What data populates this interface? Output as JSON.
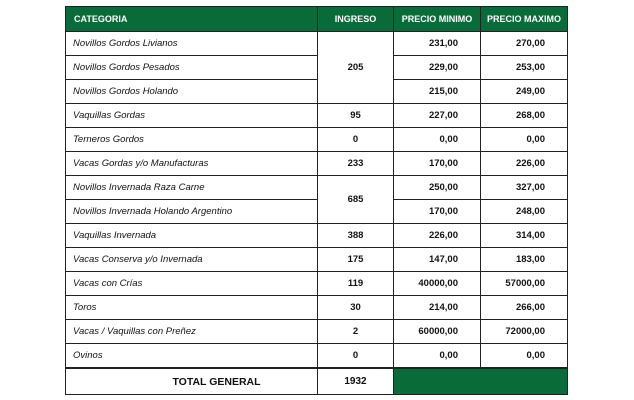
{
  "headers": {
    "categoria": "CATEGORIA",
    "ingreso": "INGRESO",
    "precio_minimo": "PRECIO MINIMO",
    "precio_maximo": "PRECIO MAXIMO"
  },
  "rows": [
    {
      "categoria": "Novillos Gordos Livianos",
      "min": "231,00",
      "max": "270,00"
    },
    {
      "categoria": "Novillos Gordos Pesados",
      "min": "229,00",
      "max": "253,00"
    },
    {
      "categoria": "Novillos Gordos Holando",
      "min": "215,00",
      "max": "249,00"
    },
    {
      "categoria": "Vaquillas Gordas",
      "ingreso": "95",
      "min": "227,00",
      "max": "268,00"
    },
    {
      "categoria": "Terneros Gordos",
      "ingreso": "0",
      "min": "0,00",
      "max": "0,00"
    },
    {
      "categoria": "Vacas Gordas y/o Manufacturas",
      "ingreso": "233",
      "min": "170,00",
      "max": "226,00"
    },
    {
      "categoria": "Novillos Invernada Raza Carne",
      "min": "250,00",
      "max": "327,00"
    },
    {
      "categoria": "Novillos Invernada Holando Argentino",
      "min": "170,00",
      "max": "248,00"
    },
    {
      "categoria": "Vaquillas Invernada",
      "ingreso": "388",
      "min": "226,00",
      "max": "314,00"
    },
    {
      "categoria": "Vacas Conserva y/o Invernada",
      "ingreso": "175",
      "min": "147,00",
      "max": "183,00"
    },
    {
      "categoria": "Vacas con Crías",
      "ingreso": "119",
      "min": "40000,00",
      "max": "57000,00"
    },
    {
      "categoria": "Toros",
      "ingreso": "30",
      "min": "214,00",
      "max": "266,00"
    },
    {
      "categoria": "Vacas / Vaquillas con Preñez",
      "ingreso": "2",
      "min": "60000,00",
      "max": "72000,00"
    },
    {
      "categoria": "Ovinos",
      "ingreso": "0",
      "min": "0,00",
      "max": "0,00"
    }
  ],
  "merged_ingreso": {
    "novillos_gordos": "205",
    "novillos_invernada": "685"
  },
  "total": {
    "label": "TOTAL GENERAL",
    "value": "1932"
  },
  "colors": {
    "header_green": "#0a6b3a"
  }
}
